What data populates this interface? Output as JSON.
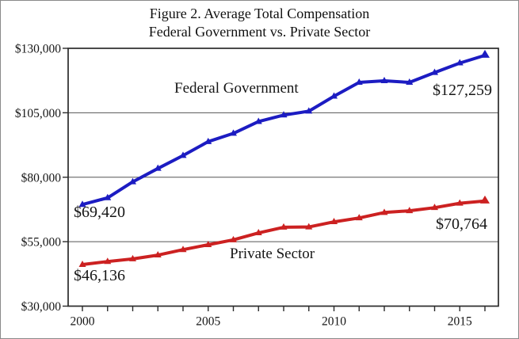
{
  "title_line1": "Figure 2. Average Total Compensation",
  "title_line2": "Federal Government vs. Private Sector",
  "annotations": {
    "federal_label": "Federal Government",
    "private_label": "Private Sector",
    "federal_start_value": "$69,420",
    "federal_end_value": "$127,259",
    "private_start_value": "$46,136",
    "private_end_value": "$70,764"
  },
  "colors": {
    "federal_line": "#1c1cc2",
    "private_line": "#cc2121",
    "axis": "#2b2b2b",
    "gridline": "#555555",
    "text": "#161616"
  },
  "chart_data": {
    "type": "line",
    "title": "Figure 2. Average Total Compensation Federal Government vs. Private Sector",
    "xlabel": "",
    "ylabel": "",
    "x": [
      2000,
      2001,
      2002,
      2003,
      2004,
      2005,
      2006,
      2007,
      2008,
      2009,
      2010,
      2011,
      2012,
      2013,
      2014,
      2015,
      2016
    ],
    "series": [
      {
        "name": "Federal Government",
        "color": "#1c1cc2",
        "values": [
          69420,
          72000,
          78200,
          83400,
          88400,
          93800,
          97000,
          101600,
          104100,
          105600,
          111400,
          116800,
          117400,
          116800,
          120600,
          124300,
          127259
        ]
      },
      {
        "name": "Private Sector",
        "color": "#cc2121",
        "values": [
          46136,
          47300,
          48300,
          49800,
          51900,
          53800,
          55700,
          58400,
          60600,
          60700,
          62700,
          64200,
          66300,
          67000,
          68200,
          69900,
          70764
        ]
      }
    ],
    "ylim": [
      30000,
      130000
    ],
    "yticks": [
      30000,
      55000,
      80000,
      105000,
      130000
    ],
    "ytick_labels": [
      "$30,000",
      "$55,000",
      "$80,000",
      "$105,000",
      "$130,000"
    ],
    "xticks_every_year": true,
    "xtick_label_years": [
      2000,
      2005,
      2010,
      2015
    ],
    "grid": "horizontal gridlines at interior y ticks",
    "legend": "inline text labels on plot, no legend box",
    "marker": "small triangle at each data point"
  }
}
